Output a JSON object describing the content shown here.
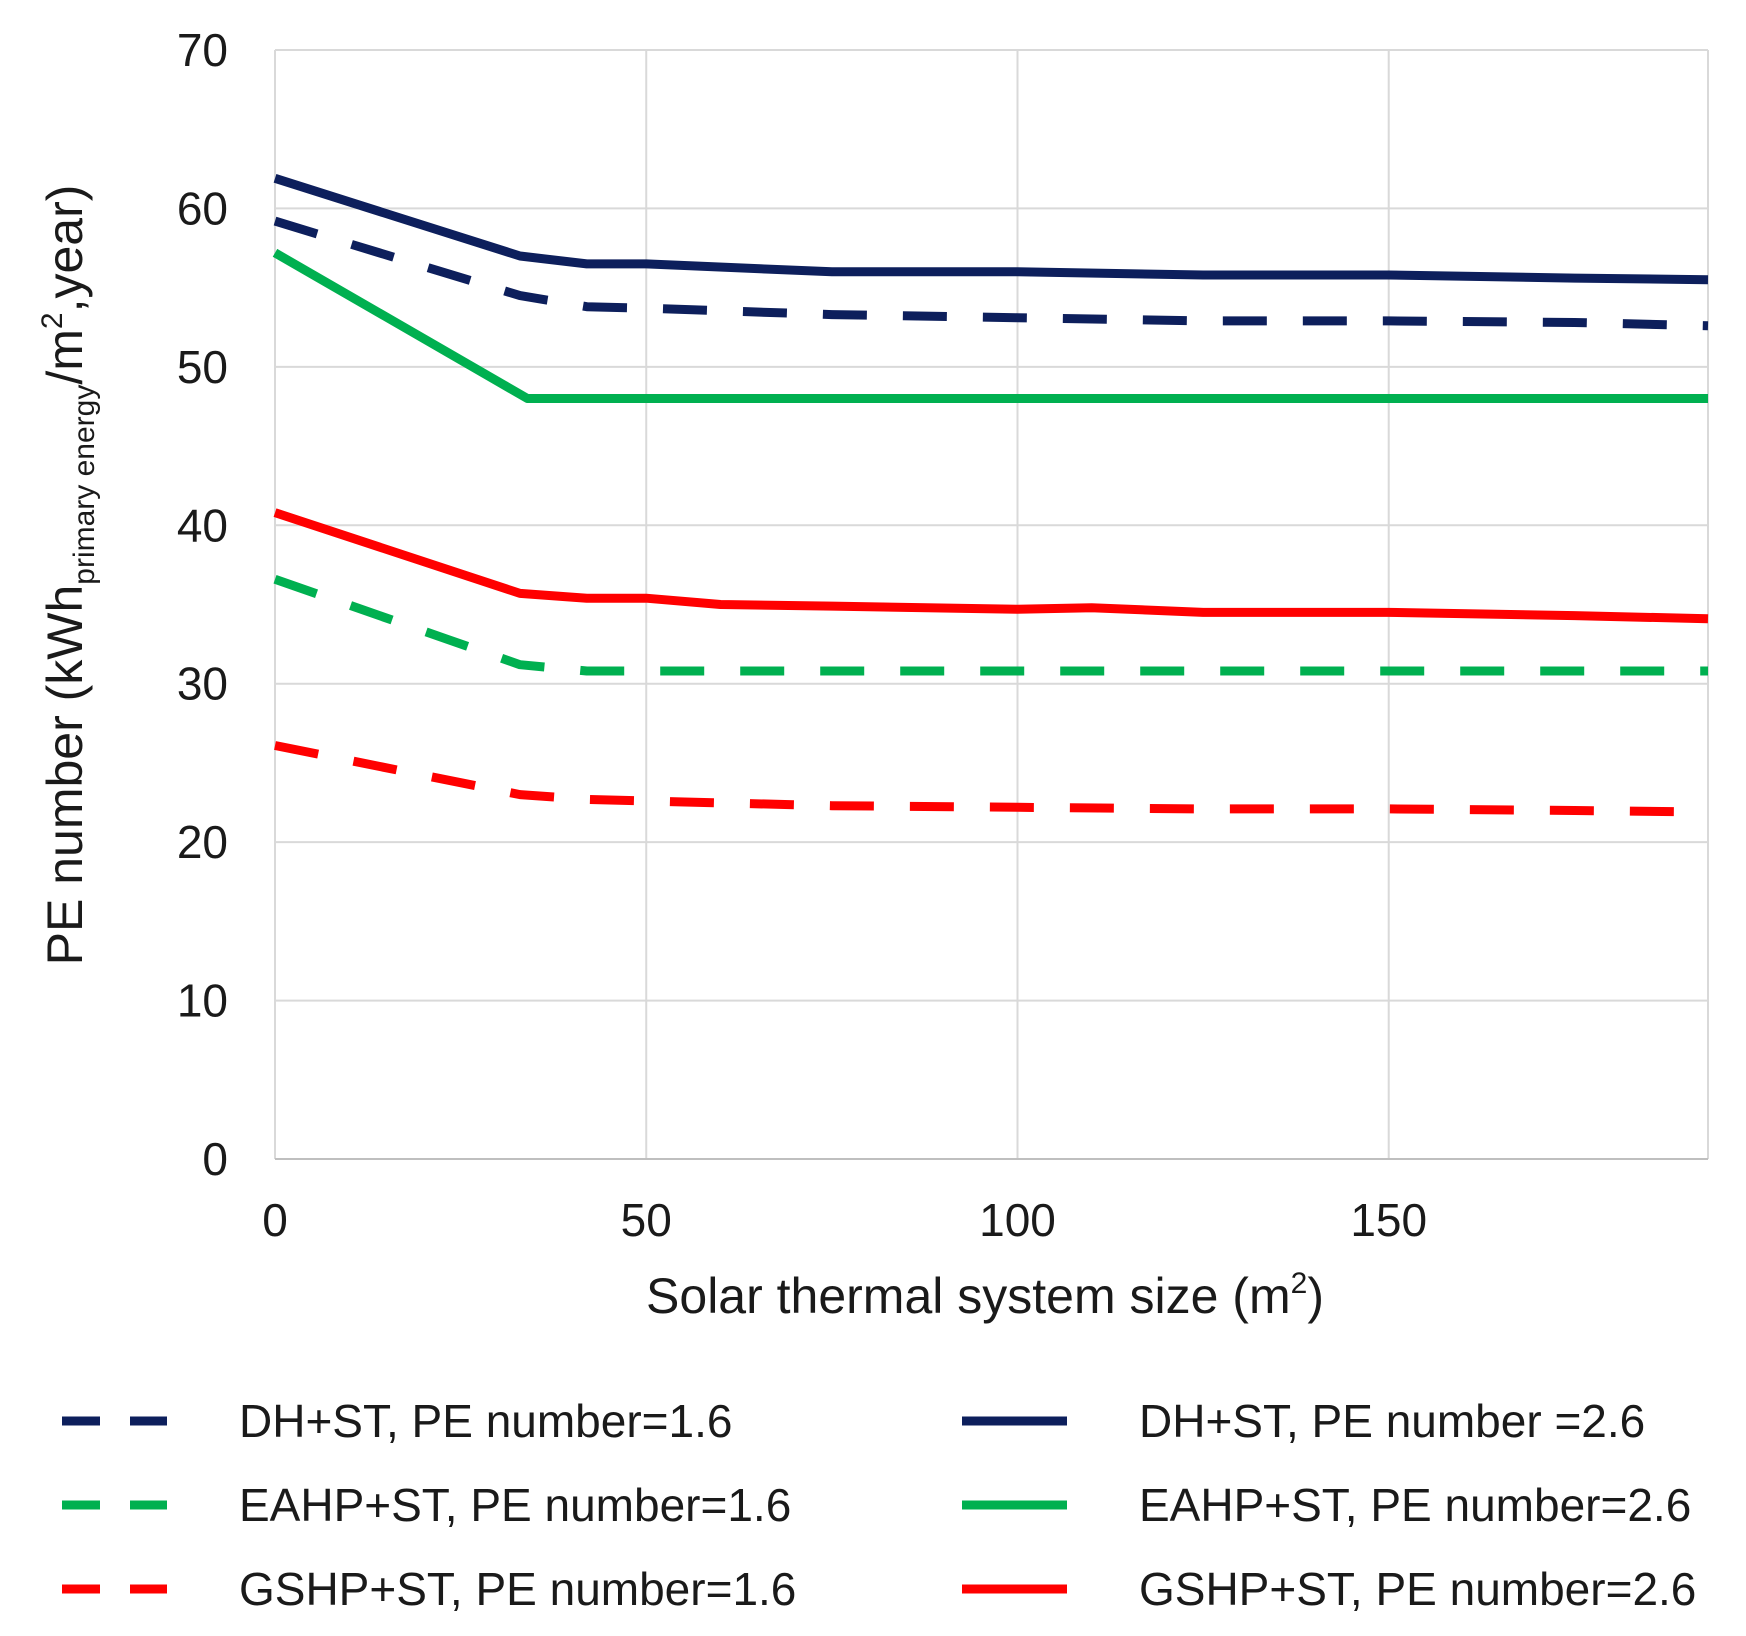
{
  "chart_data": {
    "type": "line",
    "title": "",
    "xlabel": {
      "main": "Solar thermal system size (m",
      "sup": "2",
      "close": ")"
    },
    "ylabel": {
      "pre": "PE number (kWh",
      "sub": "primary energy",
      "mid": "/m",
      "sup": "2",
      "post": ",year)"
    },
    "xlim": [
      0,
      193
    ],
    "ylim": [
      0,
      70
    ],
    "x_ticks": [
      0,
      50,
      100,
      150
    ],
    "y_ticks": [
      0,
      10,
      20,
      30,
      40,
      50,
      60,
      70
    ],
    "grid": true,
    "legend_position": "bottom",
    "series": [
      {
        "name": "DH+ST, PE number=1.6",
        "color": "#0d1f5c",
        "dash": "dashed",
        "x": [
          0,
          33,
          42,
          50,
          75,
          100,
          125,
          150,
          175,
          193
        ],
        "y": [
          59.2,
          54.5,
          53.8,
          53.7,
          53.3,
          53.1,
          52.9,
          52.9,
          52.8,
          52.6
        ]
      },
      {
        "name": "DH+ST, PE number =2.6",
        "color": "#0d1f5c",
        "dash": "solid",
        "x": [
          0,
          33,
          42,
          50,
          75,
          100,
          125,
          150,
          175,
          193
        ],
        "y": [
          61.9,
          57.0,
          56.5,
          56.5,
          56.0,
          56.0,
          55.8,
          55.8,
          55.6,
          55.5
        ]
      },
      {
        "name": "EAHP+ST, PE number=1.6",
        "color": "#00b050",
        "dash": "dashed",
        "x": [
          0,
          33,
          42,
          50,
          75,
          100,
          125,
          150,
          175,
          193
        ],
        "y": [
          36.6,
          31.2,
          30.8,
          30.8,
          30.8,
          30.8,
          30.8,
          30.8,
          30.8,
          30.8
        ]
      },
      {
        "name": "EAHP+ST, PE number=2.6",
        "color": "#00b050",
        "dash": "solid",
        "x": [
          0,
          34,
          42,
          50,
          75,
          100,
          125,
          150,
          175,
          193
        ],
        "y": [
          57.2,
          48.0,
          48.0,
          48.0,
          48.0,
          48.0,
          48.0,
          48.0,
          48.0,
          48.0
        ]
      },
      {
        "name": "GSHP+ST, PE number=1.6",
        "color": "#ff0000",
        "dash": "dashed",
        "x": [
          0,
          33,
          42,
          50,
          75,
          100,
          125,
          150,
          175,
          193
        ],
        "y": [
          26.1,
          23.0,
          22.7,
          22.6,
          22.3,
          22.2,
          22.1,
          22.1,
          22.0,
          21.9
        ]
      },
      {
        "name": "GSHP+ST, PE number=2.6",
        "color": "#ff0000",
        "dash": "solid",
        "x": [
          0,
          33,
          42,
          50,
          60,
          75,
          100,
          110,
          125,
          150,
          175,
          193
        ],
        "y": [
          40.8,
          35.7,
          35.4,
          35.4,
          35.0,
          34.9,
          34.7,
          34.8,
          34.5,
          34.5,
          34.3,
          34.1
        ]
      }
    ]
  }
}
